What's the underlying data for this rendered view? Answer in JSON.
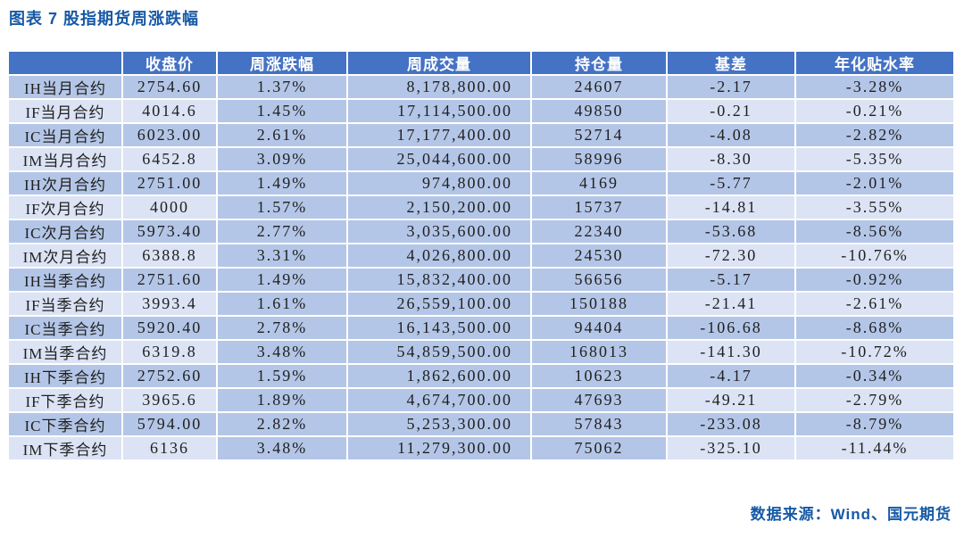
{
  "title": "图表 7 股指期货周涨跌幅",
  "source_note": "数据来源：Wind、国元期货",
  "colors": {
    "header_bg": "#4472C4",
    "row_dark": "#B4C6E7",
    "row_light": "#DBE3F4",
    "title_color": "#1659A6",
    "source_color": "#1659A6",
    "body_text": "#1F1F1F",
    "header_text": "#FFFFFF"
  },
  "table": {
    "headers": [
      "",
      "收盘价",
      "周涨跌幅",
      "周成交量",
      "持仓量",
      "基差",
      "年化贴水率"
    ],
    "rows": [
      {
        "label": "IH当月合约",
        "close": "2754.60",
        "chg": "1.37%",
        "volume": "8,178,800.00",
        "oi": "24607",
        "basis": "-2.17",
        "annual": "-3.28%"
      },
      {
        "label": "IF当月合约",
        "close": "4014.6",
        "chg": "1.45%",
        "volume": "17,114,500.00",
        "oi": "49850",
        "basis": "-0.21",
        "annual": "-0.21%"
      },
      {
        "label": "IC当月合约",
        "close": "6023.00",
        "chg": "2.61%",
        "volume": "17,177,400.00",
        "oi": "52714",
        "basis": "-4.08",
        "annual": "-2.82%"
      },
      {
        "label": "IM当月合约",
        "close": "6452.8",
        "chg": "3.09%",
        "volume": "25,044,600.00",
        "oi": "58996",
        "basis": "-8.30",
        "annual": "-5.35%"
      },
      {
        "label": "IH次月合约",
        "close": "2751.00",
        "chg": "1.49%",
        "volume": "974,800.00",
        "oi": "4169",
        "basis": "-5.77",
        "annual": "-2.01%"
      },
      {
        "label": "IF次月合约",
        "close": "4000",
        "chg": "1.57%",
        "volume": "2,150,200.00",
        "oi": "15737",
        "basis": "-14.81",
        "annual": "-3.55%"
      },
      {
        "label": "IC次月合约",
        "close": "5973.40",
        "chg": "2.77%",
        "volume": "3,035,600.00",
        "oi": "22340",
        "basis": "-53.68",
        "annual": "-8.56%"
      },
      {
        "label": "IM次月合约",
        "close": "6388.8",
        "chg": "3.31%",
        "volume": "4,026,800.00",
        "oi": "24530",
        "basis": "-72.30",
        "annual": "-10.76%"
      },
      {
        "label": "IH当季合约",
        "close": "2751.60",
        "chg": "1.49%",
        "volume": "15,832,400.00",
        "oi": "56656",
        "basis": "-5.17",
        "annual": "-0.92%"
      },
      {
        "label": "IF当季合约",
        "close": "3993.4",
        "chg": "1.61%",
        "volume": "26,559,100.00",
        "oi": "150188",
        "basis": "-21.41",
        "annual": "-2.61%"
      },
      {
        "label": "IC当季合约",
        "close": "5920.40",
        "chg": "2.78%",
        "volume": "16,143,500.00",
        "oi": "94404",
        "basis": "-106.68",
        "annual": "-8.68%"
      },
      {
        "label": "IM当季合约",
        "close": "6319.8",
        "chg": "3.48%",
        "volume": "54,859,500.00",
        "oi": "168013",
        "basis": "-141.30",
        "annual": "-10.72%"
      },
      {
        "label": "IH下季合约",
        "close": "2752.60",
        "chg": "1.59%",
        "volume": "1,862,600.00",
        "oi": "10623",
        "basis": "-4.17",
        "annual": "-0.34%"
      },
      {
        "label": "IF下季合约",
        "close": "3965.6",
        "chg": "1.89%",
        "volume": "4,674,700.00",
        "oi": "47693",
        "basis": "-49.21",
        "annual": "-2.79%"
      },
      {
        "label": "IC下季合约",
        "close": "5794.00",
        "chg": "2.82%",
        "volume": "5,253,300.00",
        "oi": "57843",
        "basis": "-233.08",
        "annual": "-8.79%"
      },
      {
        "label": "IM下季合约",
        "close": "6136",
        "chg": "3.48%",
        "volume": "11,279,300.00",
        "oi": "75062",
        "basis": "-325.10",
        "annual": "-11.44%"
      }
    ]
  }
}
